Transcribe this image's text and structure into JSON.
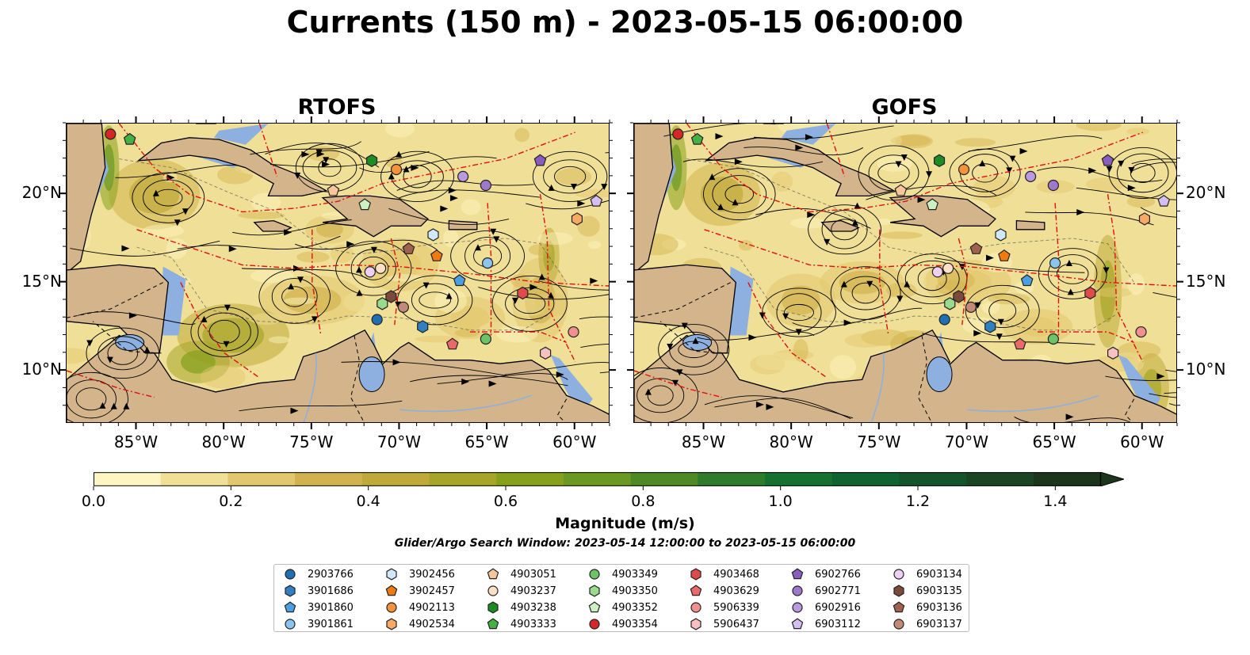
{
  "title": "Currents (150 m) - 2023-05-15 06:00:00",
  "panels": [
    {
      "title": "RTOFS"
    },
    {
      "title": "GOFS"
    }
  ],
  "axes": {
    "lon_labels": [
      "85°W",
      "80°W",
      "75°W",
      "70°W",
      "65°W",
      "60°W"
    ],
    "lat_labels": [
      "20°N",
      "15°N",
      "10°N"
    ],
    "lon_range": [
      -89,
      -58
    ],
    "lat_range": [
      7,
      24
    ]
  },
  "colorbar": {
    "label": "Magnitude (m/s)",
    "ticks": [
      "0.0",
      "0.2",
      "0.4",
      "0.6",
      "0.8",
      "1.0",
      "1.2",
      "1.4"
    ],
    "range": [
      0,
      1.5
    ],
    "colors": [
      "#fdf6c3",
      "#f0df96",
      "#e2c76f",
      "#d2b24e",
      "#bfa93a",
      "#a6a52a",
      "#86a01c",
      "#6b9823",
      "#4d8a26",
      "#2f7b2c",
      "#167130",
      "#0f6330",
      "#14542b",
      "#1a4424",
      "#1c361d"
    ]
  },
  "search_window": "Glider/Argo Search Window: 2023-05-14 12:00:00 to 2023-05-15 06:00:00",
  "floats": [
    {
      "id": "2903766",
      "marker": "circle",
      "color": "#1f6fb3",
      "lon": -71.3,
      "lat": 12.9
    },
    {
      "id": "3901686",
      "marker": "hexagon",
      "color": "#2f7fc1",
      "lon": -68.7,
      "lat": 12.5
    },
    {
      "id": "3901860",
      "marker": "pentagon",
      "color": "#4b9fe0",
      "lon": -66.6,
      "lat": 15.1
    },
    {
      "id": "3901861",
      "marker": "circle",
      "color": "#8cc4ee",
      "lon": -65.0,
      "lat": 16.1
    },
    {
      "id": "3902456",
      "marker": "hexagon",
      "color": "#cfe9fb",
      "lon": -68.1,
      "lat": 17.7
    },
    {
      "id": "3902457",
      "marker": "pentagon",
      "color": "#f07a12",
      "lon": -67.9,
      "lat": 16.5
    },
    {
      "id": "4902113",
      "marker": "circle",
      "color": "#f5923a",
      "lon": -70.2,
      "lat": 21.4
    },
    {
      "id": "4902534",
      "marker": "hexagon",
      "color": "#f7aa66",
      "lon": -59.9,
      "lat": 18.6
    },
    {
      "id": "4903051",
      "marker": "pentagon",
      "color": "#f9c59a",
      "lon": -73.8,
      "lat": 20.2
    },
    {
      "id": "4903237",
      "marker": "circle",
      "color": "#fde0c5",
      "lon": -71.1,
      "lat": 15.8
    },
    {
      "id": "4903238",
      "marker": "hexagon",
      "color": "#1e8c24",
      "lon": -71.6,
      "lat": 21.9
    },
    {
      "id": "4903333",
      "marker": "pentagon",
      "color": "#45b043",
      "lon": -85.4,
      "lat": 23.1
    },
    {
      "id": "4903349",
      "marker": "circle",
      "color": "#6cc466",
      "lon": -65.1,
      "lat": 11.8
    },
    {
      "id": "4903350",
      "marker": "hexagon",
      "color": "#9bd98f",
      "lon": -71.0,
      "lat": 13.8
    },
    {
      "id": "4903352",
      "marker": "pentagon",
      "color": "#cdf0c2",
      "lon": -72.0,
      "lat": 19.4
    },
    {
      "id": "4903354",
      "marker": "circle",
      "color": "#d62728",
      "lon": -86.5,
      "lat": 23.4
    },
    {
      "id": "4903468",
      "marker": "hexagon",
      "color": "#e04a4a",
      "lon": -63.0,
      "lat": 14.4
    },
    {
      "id": "4903629",
      "marker": "pentagon",
      "color": "#e86a6a",
      "lon": -67.0,
      "lat": 11.5
    },
    {
      "id": "5906339",
      "marker": "circle",
      "color": "#f09090",
      "lon": -60.1,
      "lat": 12.2
    },
    {
      "id": "5906437",
      "marker": "hexagon",
      "color": "#f8c0c0",
      "lon": -61.7,
      "lat": 11.0
    },
    {
      "id": "6902766",
      "marker": "pentagon",
      "color": "#8a5cc0",
      "lon": -62.0,
      "lat": 21.9
    },
    {
      "id": "6902771",
      "marker": "circle",
      "color": "#9e78cc",
      "lon": -65.1,
      "lat": 20.5
    },
    {
      "id": "6902916",
      "marker": "circle",
      "color": "#b99ae0",
      "lon": -66.4,
      "lat": 21.0
    },
    {
      "id": "6903112",
      "marker": "pentagon",
      "color": "#d5bff2",
      "lon": -58.8,
      "lat": 19.6
    },
    {
      "id": "6903134",
      "marker": "circle",
      "color": "#efd0f5",
      "lon": -71.7,
      "lat": 15.6
    },
    {
      "id": "6903135",
      "marker": "hexagon",
      "color": "#7a4a3a",
      "lon": -70.5,
      "lat": 14.2
    },
    {
      "id": "6903136",
      "marker": "pentagon",
      "color": "#a0624e",
      "lon": -69.5,
      "lat": 16.9
    },
    {
      "id": "6903137",
      "marker": "circle",
      "color": "#c38a7a",
      "lon": -69.8,
      "lat": 13.6
    }
  ],
  "colors": {
    "land": "#d4b48a",
    "shallow": "#8db0e0",
    "vector": "#e01010"
  }
}
